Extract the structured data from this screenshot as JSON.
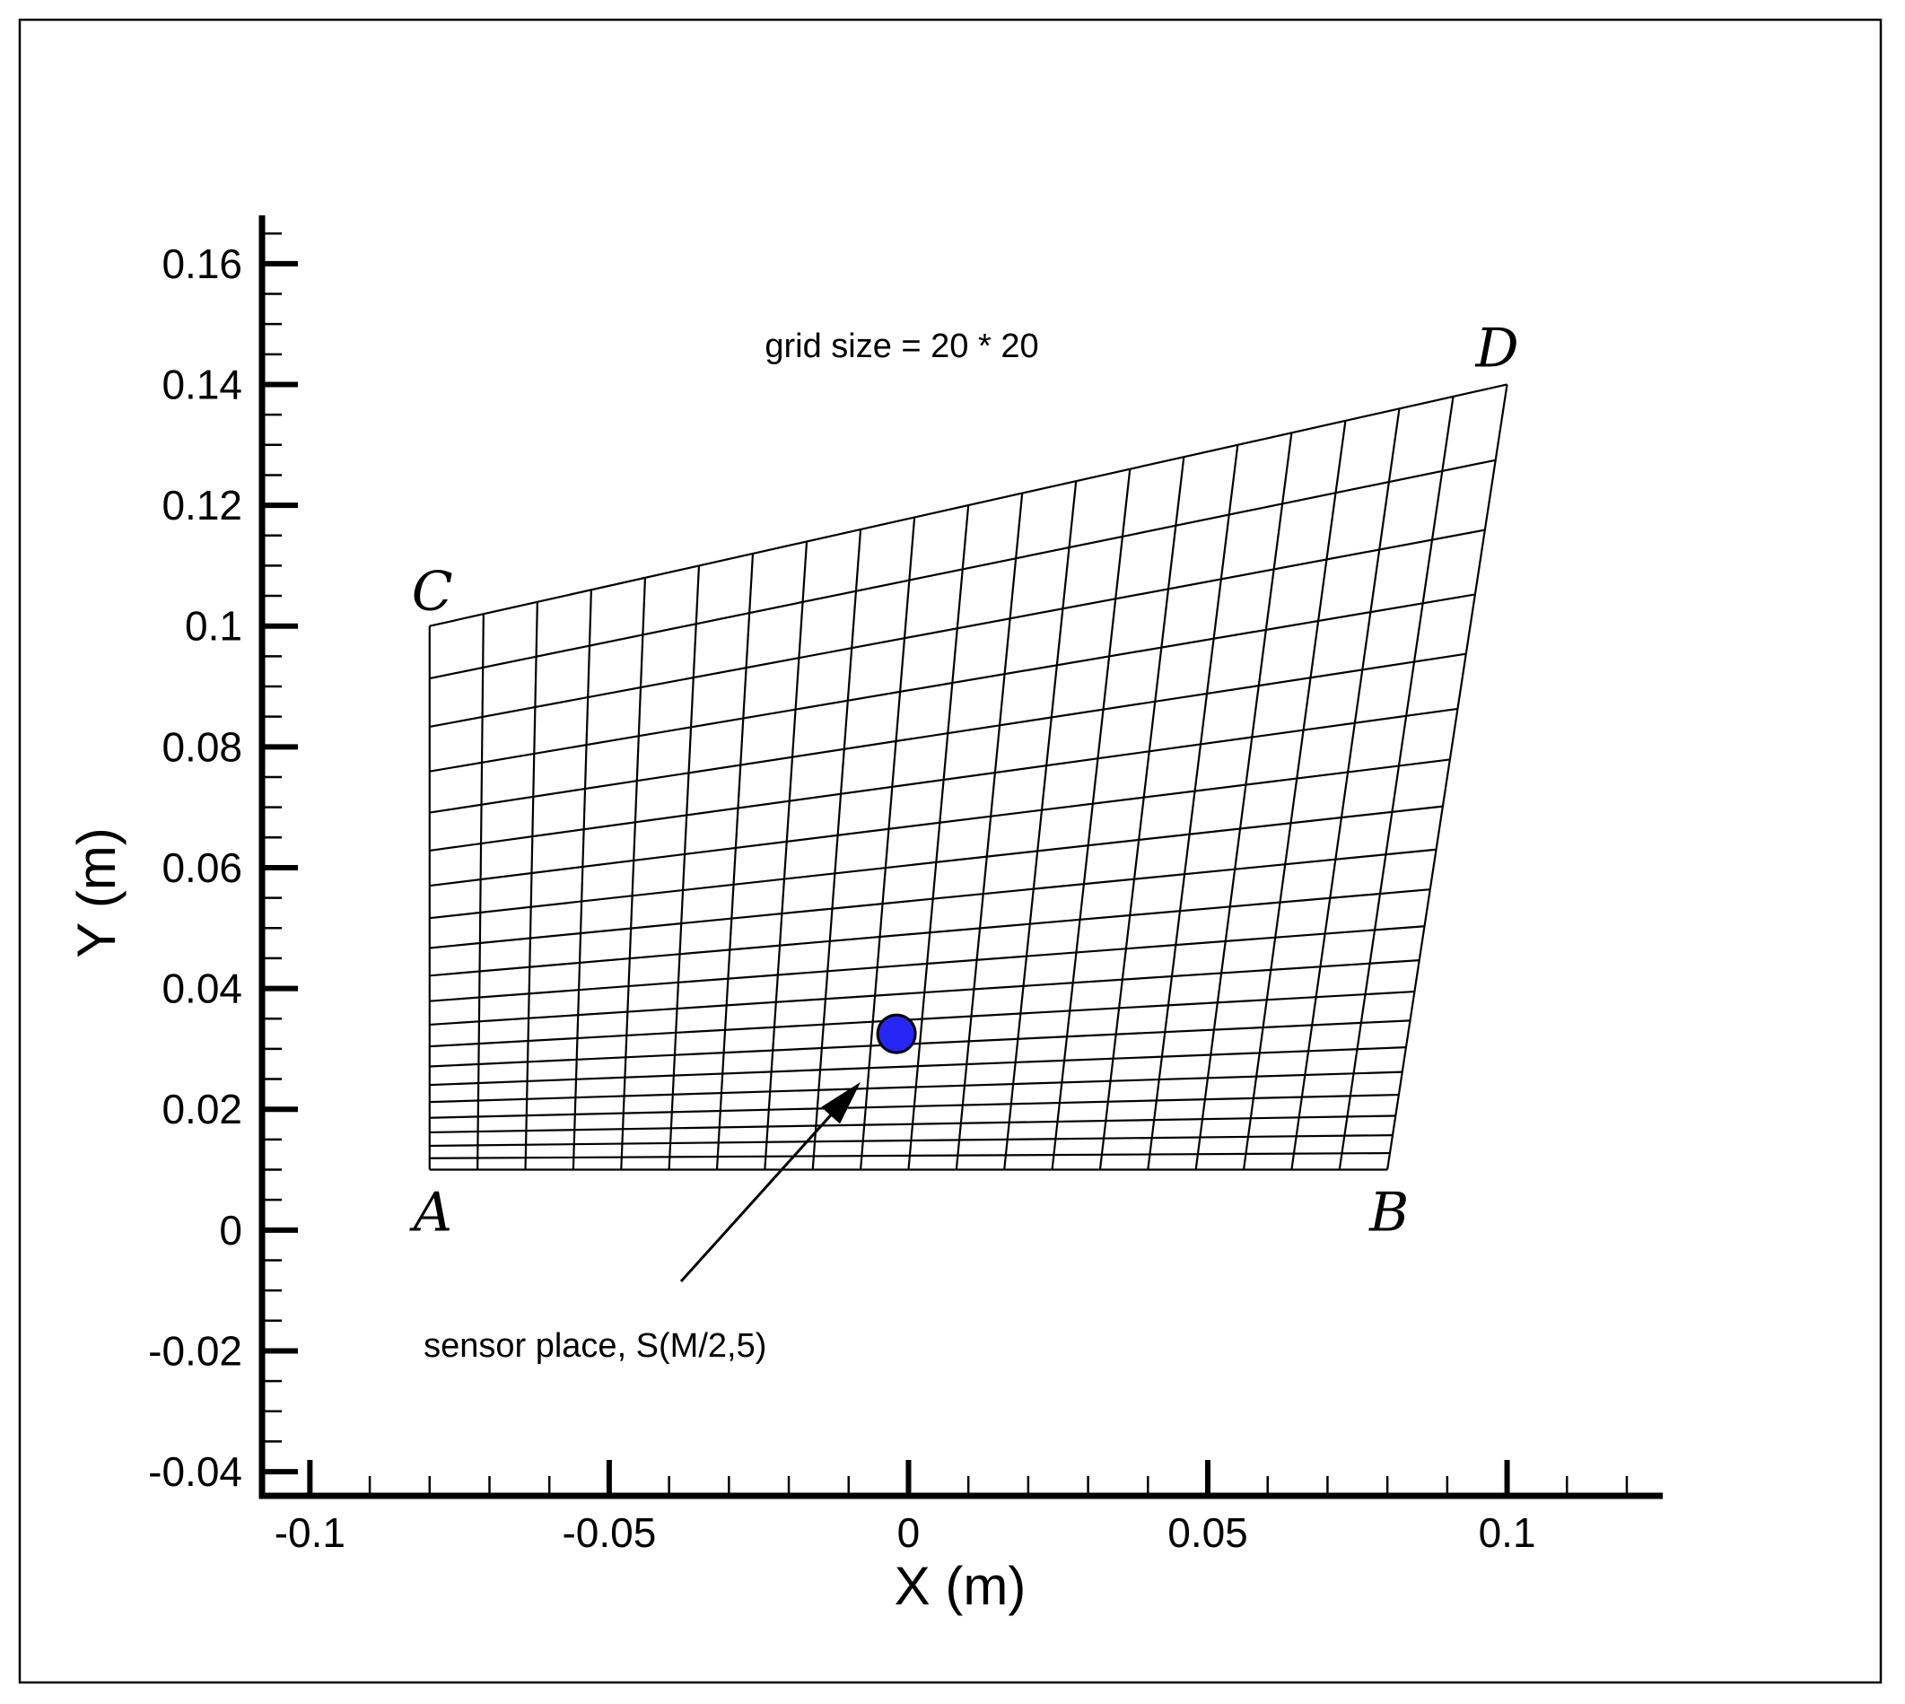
{
  "chart_data": {
    "type": "scatter",
    "title": "",
    "xlabel": "X (m)",
    "ylabel": "Y (m)",
    "xlim": [
      -0.108,
      0.126
    ],
    "ylim": [
      -0.044,
      0.168
    ],
    "x_ticks": [
      -0.1,
      -0.05,
      0,
      0.05,
      0.1
    ],
    "x_tick_labels": [
      "-0.1",
      "-0.05",
      "0",
      "0.05",
      "0.1"
    ],
    "y_ticks": [
      -0.04,
      -0.02,
      0,
      0.02,
      0.04,
      0.06,
      0.08,
      0.1,
      0.12,
      0.14,
      0.16
    ],
    "y_tick_labels": [
      "-0.04",
      "-0.02",
      "0",
      "0.02",
      "0.04",
      "0.06",
      "0.08",
      "0.1",
      "0.12",
      "0.14",
      "0.16"
    ],
    "grid_on": false,
    "mesh": {
      "cells_x": 20,
      "cells_y": 20,
      "corners": {
        "A": {
          "label": "A",
          "x": -0.08,
          "y": 0.01
        },
        "B": {
          "label": "B",
          "x": 0.08,
          "y": 0.01
        },
        "C": {
          "label": "C",
          "x": -0.08,
          "y": 0.1
        },
        "D": {
          "label": "D",
          "x": 0.1,
          "y": 0.14
        }
      },
      "y_stretch": 1.6,
      "color": "#000000"
    },
    "sensor": {
      "x": -0.002,
      "y": 0.0325,
      "color": "#2727f5"
    },
    "annotations": [
      {
        "id": "grid-size",
        "text": "grid size = 20 * 20",
        "x": -0.024,
        "y": 0.1445
      },
      {
        "id": "sensor-label",
        "text": "sensor place, S(M/2,5)",
        "x": -0.081,
        "y": -0.021,
        "arrow_from": [
          -0.038,
          -0.0085
        ],
        "arrow_to": [
          -0.008,
          0.0245
        ]
      }
    ]
  }
}
